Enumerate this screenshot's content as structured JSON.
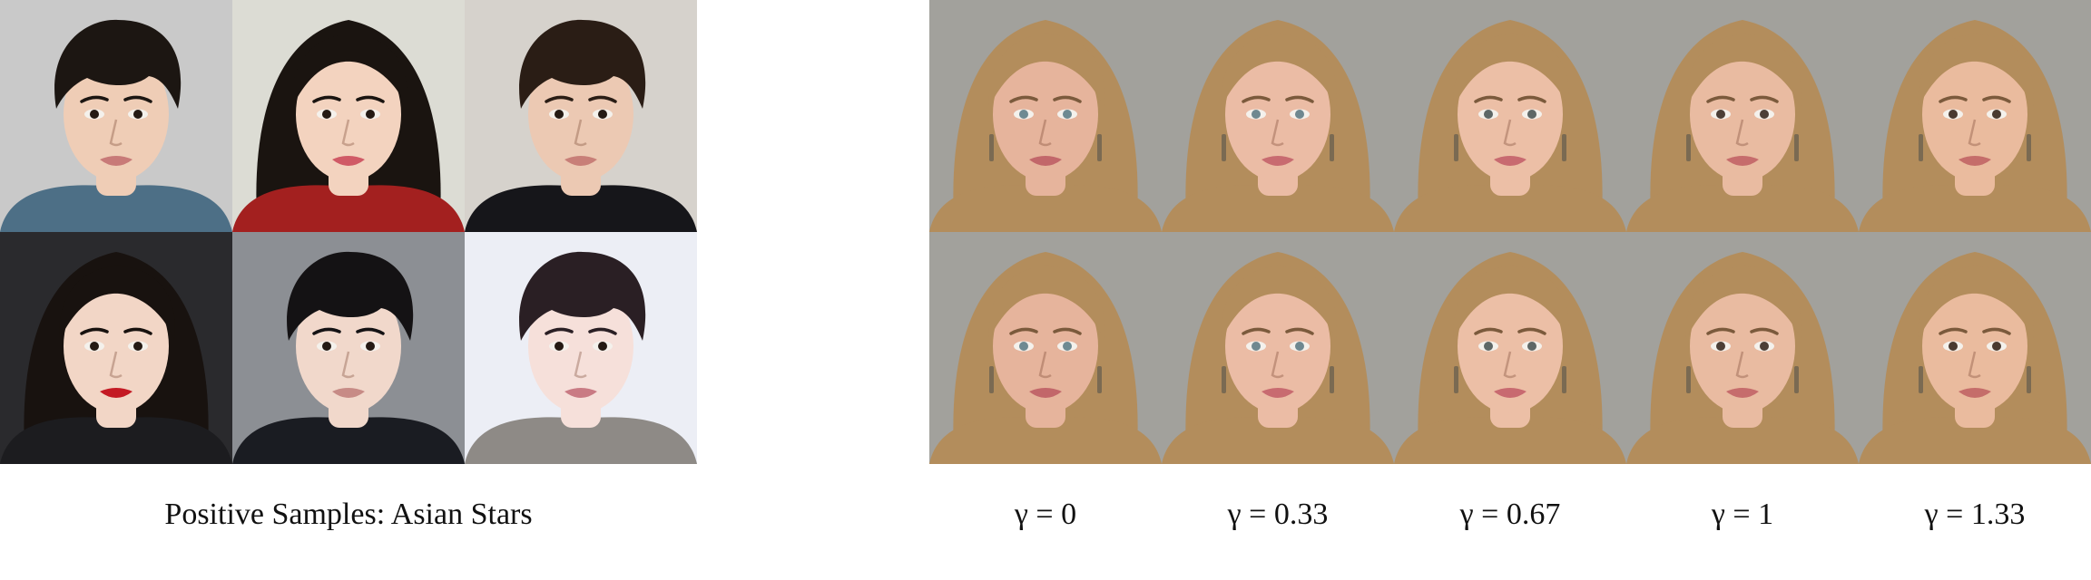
{
  "left_panel": {
    "caption": "Positive Samples: Asian Stars",
    "samples": [
      {
        "bg": "#c9c9c9",
        "hair": "#1c1612",
        "skin": "#efcdb6",
        "shirt": "#4d6f86",
        "lip": "#c87a78"
      },
      {
        "bg": "#dcdcd4",
        "hair": "#1a1410",
        "skin": "#f3d3bf",
        "shirt": "#a3201f",
        "lip": "#d05a66"
      },
      {
        "bg": "#d6d2cc",
        "hair": "#2a1d15",
        "skin": "#ecc9b3",
        "shirt": "#16161a",
        "lip": "#c87f78"
      },
      {
        "bg": "#2a2a2d",
        "hair": "#18120f",
        "skin": "#f2d6c6",
        "shirt": "#1c1c1f",
        "lip": "#c41a24"
      },
      {
        "bg": "#8c8f94",
        "hair": "#141214",
        "skin": "#f1d8cb",
        "shirt": "#1a1c22",
        "lip": "#c78b86"
      },
      {
        "bg": "#eceef5",
        "hair": "#2a1f24",
        "skin": "#f6e0da",
        "shirt": "#8e8a86",
        "lip": "#c97b84"
      }
    ]
  },
  "right_panel": {
    "gamma_labels": [
      "γ = 0",
      "γ = 0.33",
      "γ = 0.67",
      "γ = 1",
      "γ = 1.33"
    ],
    "background": "#a2a19c",
    "hair": "#b38d5c",
    "skin": [
      "#e6b49c",
      "#ebbca5",
      "#ecbfa6",
      "#e9bba1",
      "#eabb9e"
    ],
    "eye": [
      "#6e8a92",
      "#6f8890",
      "#5e6766",
      "#4c3f37",
      "#4a3a30"
    ],
    "lip": [
      "#c2676a",
      "#c86b70",
      "#c86a70",
      "#c66c6c",
      "#c56d6a"
    ]
  }
}
